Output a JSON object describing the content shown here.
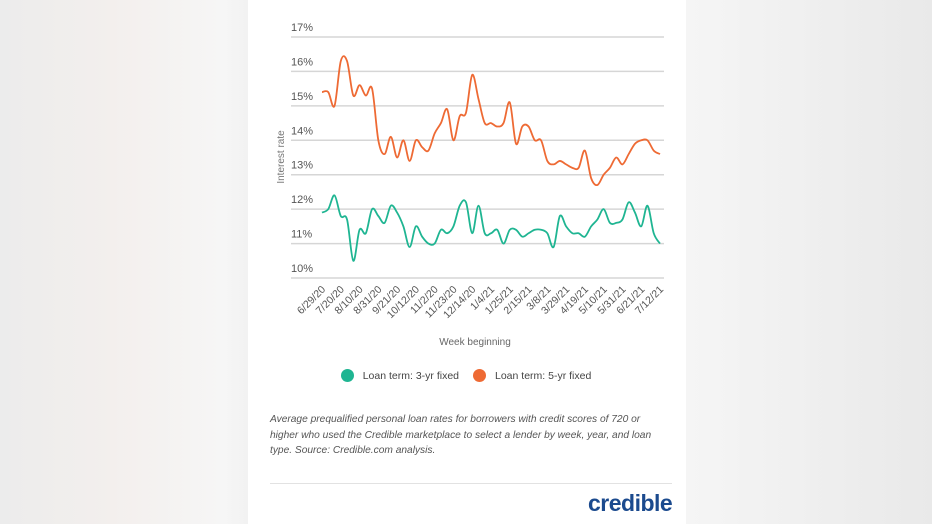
{
  "chart_data": {
    "type": "line",
    "title": "",
    "xlabel": "Week beginning",
    "ylabel": "Interest rate",
    "ylim": [
      10,
      17
    ],
    "yticks": [
      "10%",
      "11%",
      "12%",
      "13%",
      "14%",
      "15%",
      "16%",
      "17%"
    ],
    "xtick_labels": [
      "6/29/20",
      "7/20/20",
      "8/10/20",
      "8/31/20",
      "9/21/20",
      "10/12/20",
      "11/2/20",
      "11/23/20",
      "12/14/20",
      "1/4/21",
      "1/25/21",
      "2/15/21",
      "3/8/21",
      "3/29/21",
      "4/19/21",
      "5/10/21",
      "5/31/21",
      "6/21/21",
      "7/12/21"
    ],
    "xtick_every_weeks": 3,
    "weeks": 55,
    "grid": true,
    "legend_position": "bottom",
    "series": [
      {
        "name": "Loan term: 3-yr fixed",
        "color": "#1fb592",
        "values": [
          11.9,
          12.0,
          12.4,
          11.8,
          11.7,
          10.5,
          11.4,
          11.3,
          12.0,
          11.8,
          11.6,
          12.1,
          11.9,
          11.5,
          10.9,
          11.5,
          11.2,
          11.0,
          11.0,
          11.4,
          11.3,
          11.5,
          12.1,
          12.2,
          11.3,
          12.1,
          11.3,
          11.3,
          11.4,
          11.0,
          11.4,
          11.4,
          11.2,
          11.3,
          11.4,
          11.4,
          11.3,
          10.9,
          11.8,
          11.5,
          11.3,
          11.3,
          11.2,
          11.5,
          11.7,
          12.0,
          11.6,
          11.6,
          11.7,
          12.2,
          11.9,
          11.5,
          12.1,
          11.3,
          11.0
        ]
      },
      {
        "name": "Loan term: 5-yr fixed",
        "color": "#ee6a34",
        "values": [
          15.4,
          15.4,
          15.0,
          16.3,
          16.3,
          15.3,
          15.6,
          15.3,
          15.5,
          14.0,
          13.6,
          14.1,
          13.5,
          14.0,
          13.4,
          14.0,
          13.8,
          13.7,
          14.2,
          14.5,
          14.9,
          14.0,
          14.7,
          14.8,
          15.9,
          15.2,
          14.5,
          14.5,
          14.4,
          14.5,
          15.1,
          13.9,
          14.4,
          14.4,
          14.0,
          14.0,
          13.4,
          13.3,
          13.4,
          13.3,
          13.2,
          13.2,
          13.7,
          12.9,
          12.7,
          13.0,
          13.2,
          13.5,
          13.3,
          13.6,
          13.9,
          14.0,
          14.0,
          13.7,
          13.6
        ]
      }
    ]
  },
  "caption": "Average prequalified personal loan rates for borrowers with credit scores of 720 or higher who used the Credible marketplace to select a lender by week, year, and loan type. Source: Credible.com analysis.",
  "logo": "credible"
}
